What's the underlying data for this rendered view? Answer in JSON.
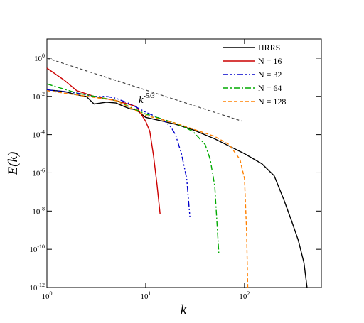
{
  "chart_data": {
    "type": "line",
    "x_label": "k",
    "y_label": "E(k)",
    "log_x": true,
    "log_y": true,
    "xlim": [
      1,
      600
    ],
    "ylim": [
      1e-12,
      10
    ],
    "xticks": [
      {
        "value": 1,
        "label": "10",
        "exponent": "0"
      },
      {
        "value": 10,
        "label": "10",
        "exponent": "1"
      },
      {
        "value": 100,
        "label": "10",
        "exponent": "2"
      }
    ],
    "yticks": [
      {
        "value": 1e-12,
        "label": "10",
        "exponent": "-12"
      },
      {
        "value": 1e-10,
        "label": "10",
        "exponent": "-10"
      },
      {
        "value": 1e-08,
        "label": "10",
        "exponent": "-8"
      },
      {
        "value": 1e-06,
        "label": "10",
        "exponent": "-6"
      },
      {
        "value": 0.0001,
        "label": "10",
        "exponent": "-4"
      },
      {
        "value": 0.01,
        "label": "10",
        "exponent": "-2"
      },
      {
        "value": 1,
        "label": "10",
        "exponent": "0"
      }
    ],
    "legend": "top-right",
    "series": [
      {
        "name": "HRRS",
        "color": "#000000",
        "dash": "none",
        "x": [
          1,
          1.5,
          2,
          2.5,
          3,
          4,
          5,
          6,
          7,
          8,
          10,
          15,
          20,
          30,
          50,
          70,
          100,
          150,
          200,
          250,
          300,
          350,
          400,
          430
        ],
        "values": [
          0.022,
          0.018,
          0.012,
          0.01,
          0.004,
          0.005,
          0.0045,
          0.003,
          0.0022,
          0.002,
          0.0008,
          0.0005,
          0.00035,
          0.00018,
          6e-05,
          2.5e-05,
          1e-05,
          3e-06,
          7e-07,
          4e-08,
          3e-09,
          3e-10,
          2e-11,
          1e-12
        ]
      },
      {
        "name": "N = 16",
        "color": "#cc0000",
        "dash": "none",
        "x": [
          1,
          1.5,
          2,
          3,
          5,
          8,
          10,
          11,
          12,
          13,
          14
        ],
        "values": [
          0.3,
          0.07,
          0.02,
          0.01,
          0.006,
          0.003,
          0.0005,
          0.00015,
          8e-06,
          2.5e-07,
          7e-09
        ]
      },
      {
        "name": "N = 32",
        "color": "#0000cc",
        "dash": "8 3 2 3 2 3",
        "x": [
          1,
          2,
          3,
          4,
          5,
          7,
          10,
          15,
          18,
          20,
          23,
          26,
          28
        ],
        "values": [
          0.022,
          0.015,
          0.01,
          0.01,
          0.008,
          0.004,
          0.0015,
          0.0006,
          0.00025,
          0.0001,
          1e-05,
          5e-07,
          5e-09
        ]
      },
      {
        "name": "N = 64",
        "color": "#00aa00",
        "dash": "8 3 2 3",
        "x": [
          1,
          2,
          5,
          10,
          20,
          30,
          40,
          45,
          50,
          55
        ],
        "values": [
          0.045,
          0.015,
          0.006,
          0.0012,
          0.0004,
          0.00015,
          3e-05,
          5e-06,
          2e-07,
          6e-11
        ]
      },
      {
        "name": "N = 128",
        "color": "#ff8000",
        "dash": "5 3",
        "x": [
          1,
          2,
          5,
          10,
          20,
          50,
          70,
          90,
          100,
          105,
          108
        ],
        "values": [
          0.02,
          0.012,
          0.006,
          0.001,
          0.0004,
          8e-05,
          3e-05,
          5e-06,
          5e-07,
          1e-09,
          1e-12
        ]
      }
    ],
    "reference": {
      "text": "k",
      "exponent": "-5/3",
      "color": "#444444",
      "x": [
        1,
        95
      ],
      "values": [
        1,
        0.0005
      ]
    }
  }
}
